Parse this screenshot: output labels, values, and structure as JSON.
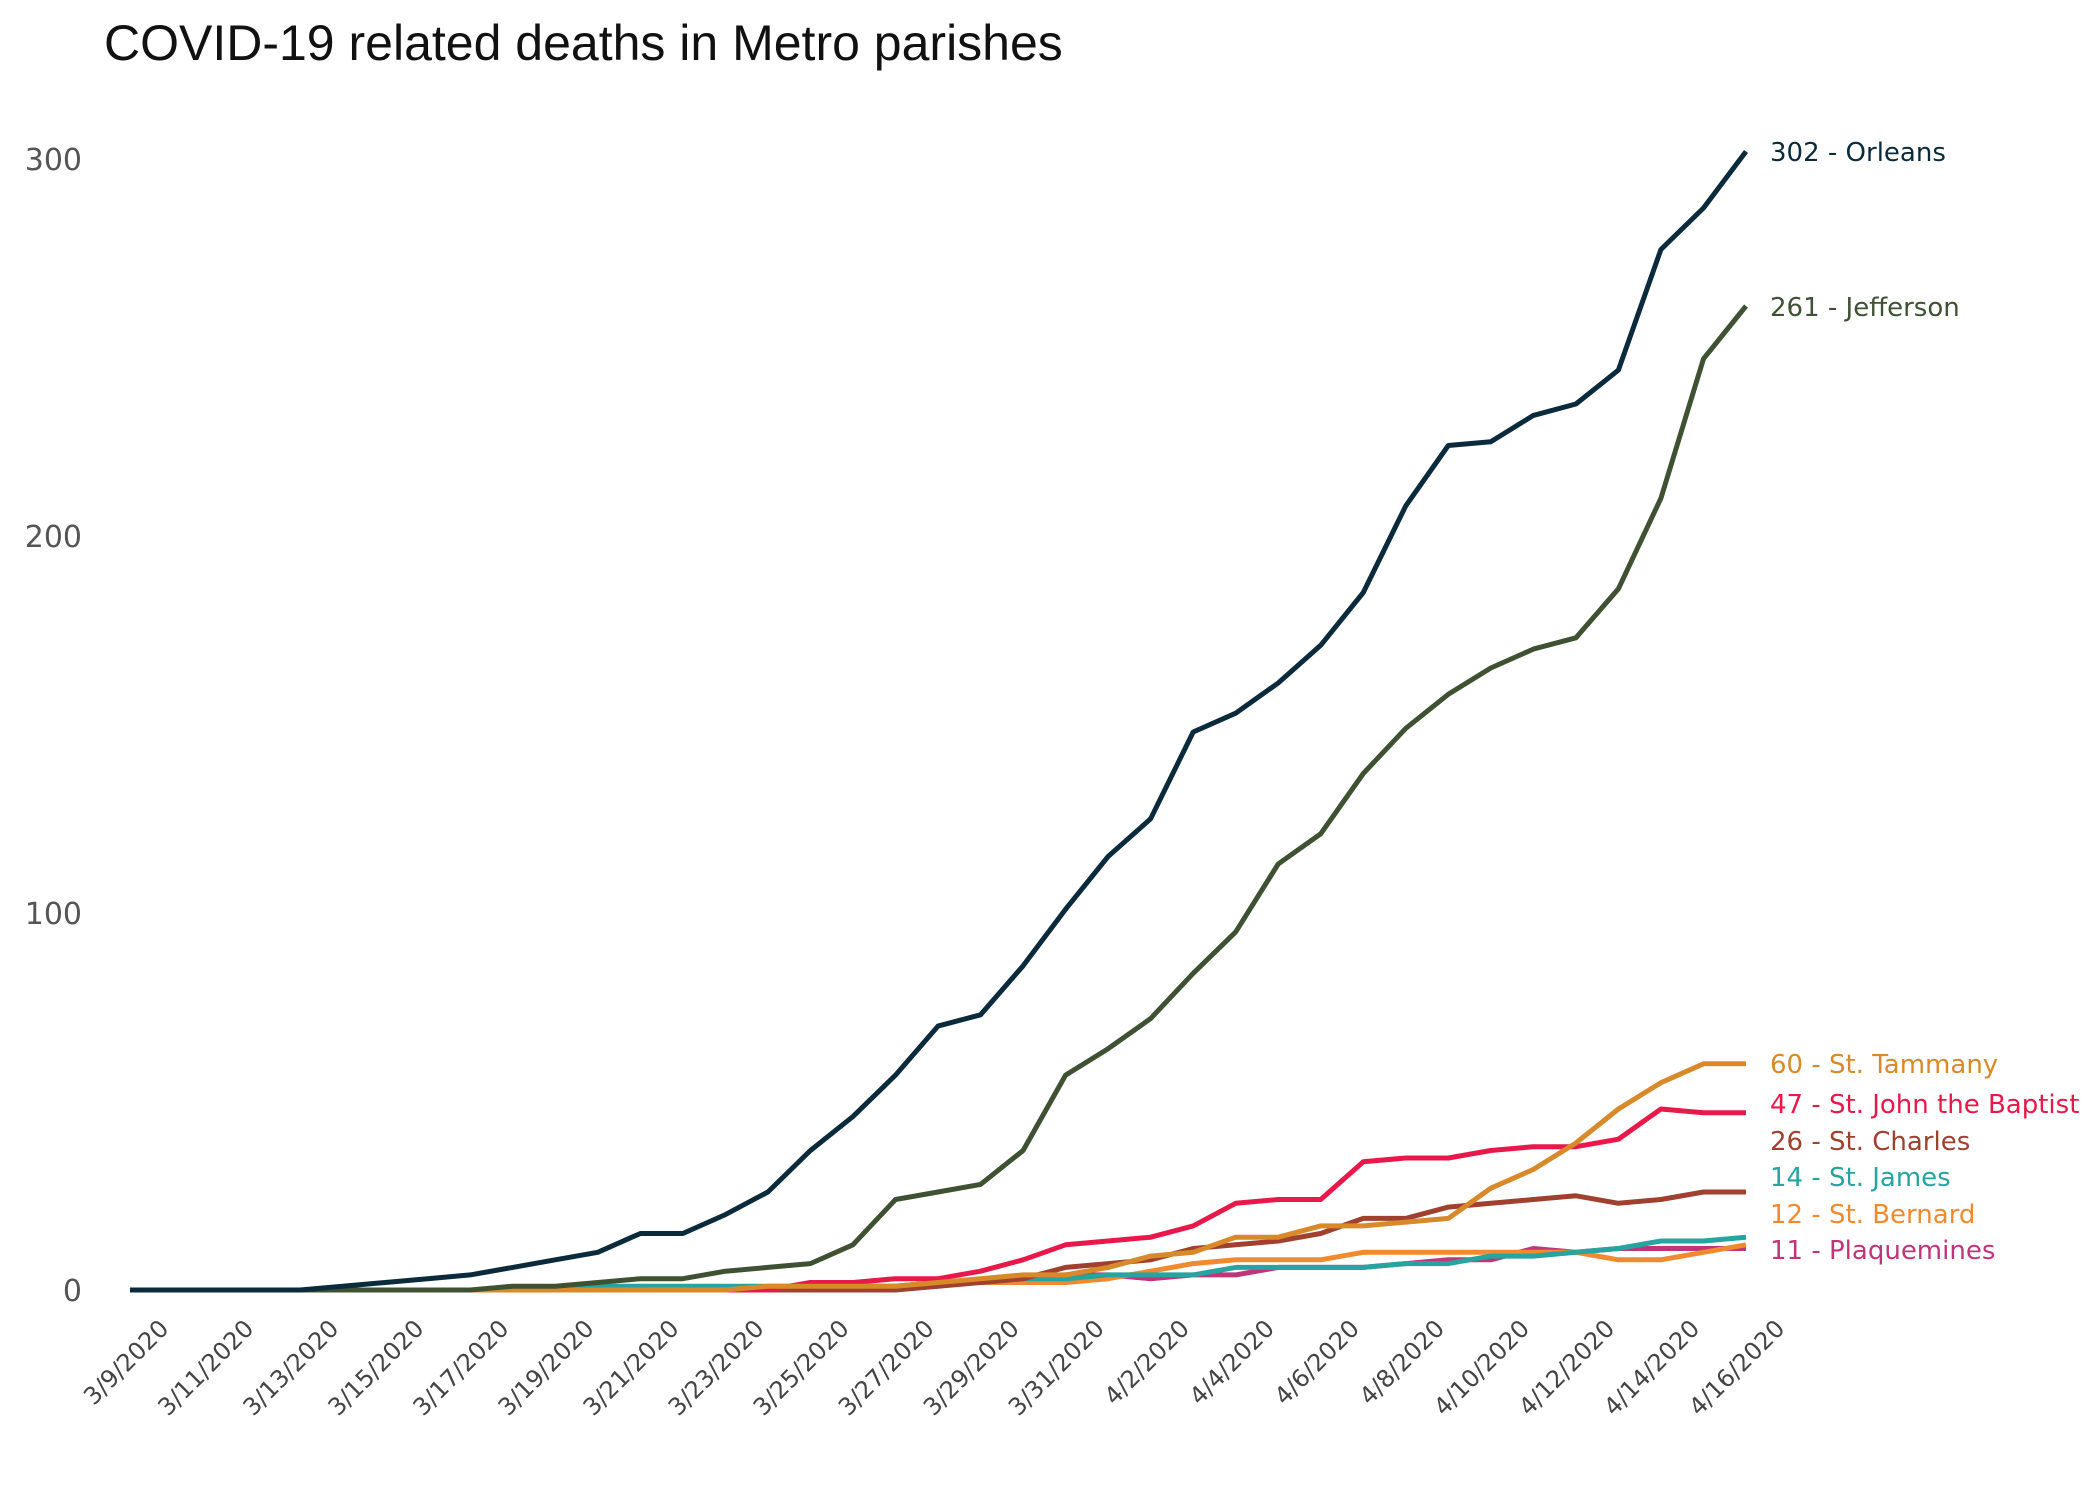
{
  "chart_data": {
    "type": "line",
    "title": "COVID-19 related deaths in Metro parishes",
    "xlabel": "",
    "ylabel": "",
    "ylim": [
      0,
      300
    ],
    "yticks": [
      0,
      100,
      200,
      300
    ],
    "grid": false,
    "legend": "direct labels at line ends (right)",
    "x": [
      "3/9/2020",
      "3/10/2020",
      "3/11/2020",
      "3/12/2020",
      "3/13/2020",
      "3/14/2020",
      "3/15/2020",
      "3/16/2020",
      "3/17/2020",
      "3/18/2020",
      "3/19/2020",
      "3/20/2020",
      "3/21/2020",
      "3/22/2020",
      "3/23/2020",
      "3/24/2020",
      "3/25/2020",
      "3/26/2020",
      "3/27/2020",
      "3/28/2020",
      "3/29/2020",
      "3/30/2020",
      "3/31/2020",
      "4/1/2020",
      "4/2/2020",
      "4/3/2020",
      "4/4/2020",
      "4/5/2020",
      "4/6/2020",
      "4/7/2020",
      "4/8/2020",
      "4/9/2020",
      "4/10/2020",
      "4/11/2020",
      "4/12/2020",
      "4/13/2020",
      "4/14/2020",
      "4/15/2020",
      "4/16/2020"
    ],
    "xtick_labels": [
      "3/9/2020",
      "3/11/2020",
      "3/13/2020",
      "3/15/2020",
      "3/17/2020",
      "3/19/2020",
      "3/21/2020",
      "3/23/2020",
      "3/25/2020",
      "3/27/2020",
      "3/29/2020",
      "3/31/2020",
      "4/2/2020",
      "4/4/2020",
      "4/6/2020",
      "4/8/2020",
      "4/10/2020",
      "4/12/2020",
      "4/14/2020",
      "4/16/2020"
    ],
    "series": [
      {
        "name": "Orleans",
        "label": "302 - Orleans",
        "color": "#0b2a3b",
        "values": [
          0,
          0,
          0,
          0,
          0,
          1,
          2,
          3,
          4,
          6,
          8,
          10,
          15,
          15,
          20,
          26,
          37,
          46,
          57,
          70,
          73,
          86,
          101,
          115,
          125,
          148,
          153,
          161,
          171,
          185,
          208,
          224,
          225,
          232,
          235,
          244,
          276,
          287,
          302
        ]
      },
      {
        "name": "Jefferson",
        "label": "261 - Jefferson",
        "color": "#3f5133",
        "values": [
          0,
          0,
          0,
          0,
          0,
          0,
          0,
          0,
          0,
          1,
          1,
          2,
          3,
          3,
          5,
          6,
          7,
          12,
          24,
          26,
          28,
          37,
          57,
          64,
          72,
          84,
          95,
          113,
          121,
          137,
          149,
          158,
          165,
          170,
          173,
          186,
          210,
          247,
          261
        ]
      },
      {
        "name": "St. Tammany",
        "label": "60 - St. Tammany",
        "color": "#d88a2a",
        "values": [
          0,
          0,
          0,
          0,
          0,
          0,
          0,
          0,
          0,
          0,
          0,
          0,
          0,
          0,
          0,
          1,
          1,
          1,
          1,
          2,
          3,
          4,
          4,
          6,
          9,
          10,
          14,
          14,
          17,
          17,
          18,
          19,
          27,
          32,
          39,
          48,
          55,
          60,
          60
        ]
      },
      {
        "name": "St. John the Baptist",
        "label": "47 - St. John the Baptist",
        "color": "#e8194a",
        "values": [
          0,
          0,
          0,
          0,
          0,
          0,
          0,
          0,
          0,
          0,
          0,
          0,
          0,
          0,
          0,
          0,
          2,
          2,
          3,
          3,
          5,
          8,
          12,
          13,
          14,
          17,
          23,
          24,
          24,
          34,
          35,
          35,
          37,
          38,
          38,
          40,
          48,
          47,
          47
        ]
      },
      {
        "name": "St. Charles",
        "label": "26 - St. Charles",
        "color": "#a0402f",
        "values": [
          0,
          0,
          0,
          0,
          0,
          0,
          0,
          0,
          0,
          0,
          0,
          0,
          0,
          0,
          0,
          0,
          0,
          0,
          0,
          1,
          2,
          3,
          6,
          7,
          8,
          11,
          12,
          13,
          15,
          19,
          19,
          22,
          23,
          24,
          25,
          23,
          24,
          26,
          26
        ]
      },
      {
        "name": "St. James",
        "label": "14 - St. James",
        "color": "#27a3a0",
        "values": [
          0,
          0,
          0,
          0,
          0,
          0,
          0,
          0,
          0,
          0,
          0,
          1,
          1,
          1,
          1,
          1,
          1,
          1,
          1,
          2,
          2,
          3,
          3,
          4,
          4,
          4,
          6,
          6,
          6,
          6,
          7,
          7,
          9,
          9,
          10,
          11,
          13,
          13,
          14
        ]
      },
      {
        "name": "St. Bernard",
        "label": "12 - St. Bernard",
        "color": "#f08a30",
        "values": [
          0,
          0,
          0,
          0,
          0,
          0,
          0,
          0,
          0,
          0,
          0,
          0,
          0,
          0,
          0,
          0,
          0,
          0,
          1,
          2,
          2,
          2,
          2,
          3,
          5,
          7,
          8,
          8,
          8,
          10,
          10,
          10,
          10,
          10,
          10,
          8,
          8,
          10,
          12
        ]
      },
      {
        "name": "Plaquemines",
        "label": "11 - Plaquemines",
        "color": "#c0357a",
        "values": [
          0,
          0,
          0,
          0,
          0,
          0,
          0,
          0,
          0,
          0,
          0,
          0,
          0,
          0,
          0,
          0,
          0,
          0,
          1,
          2,
          2,
          3,
          4,
          4,
          3,
          4,
          4,
          6,
          6,
          6,
          7,
          8,
          8,
          11,
          10,
          11,
          11,
          11,
          11
        ]
      }
    ]
  }
}
